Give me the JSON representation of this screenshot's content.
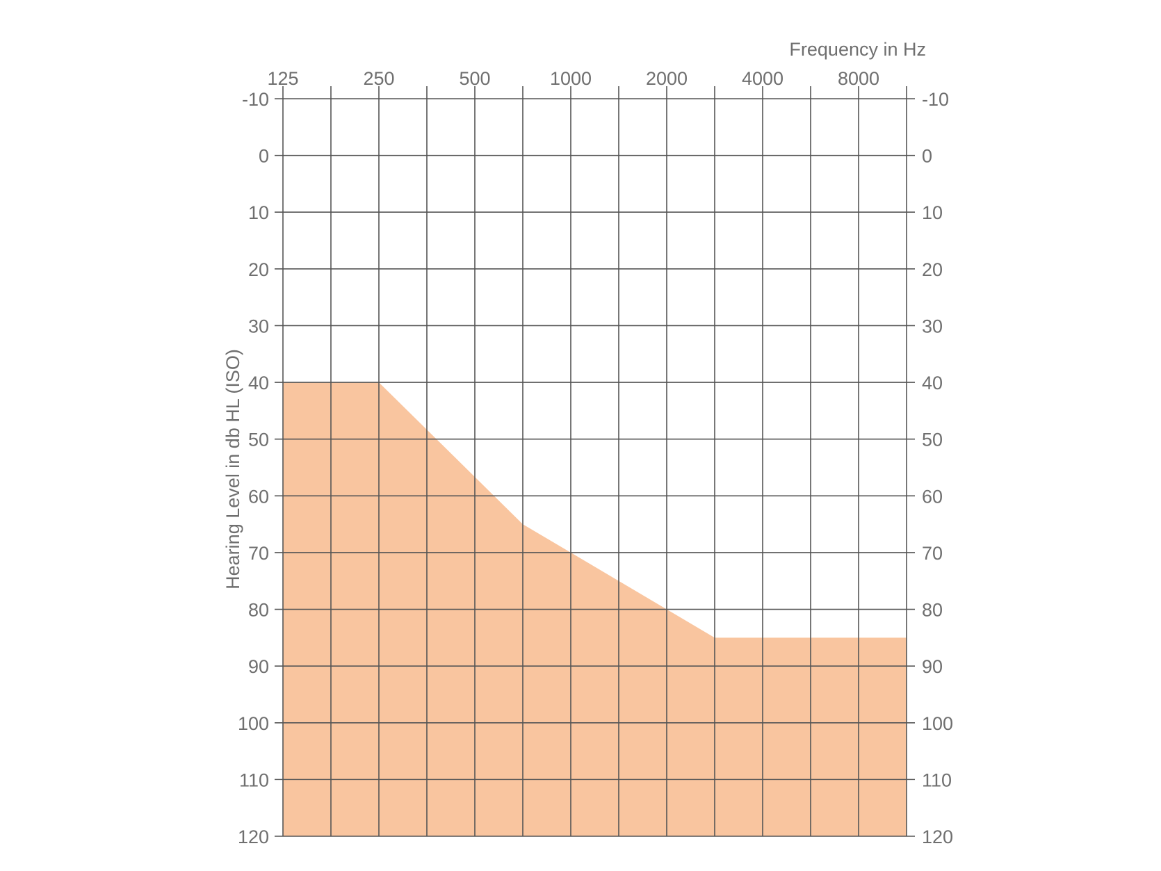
{
  "chart_data": {
    "type": "area",
    "xlabel": "Frequency in Hz",
    "ylabel": "Hearing Level in db HL (ISO)",
    "x_scale": "log2",
    "x_ticks": [
      125,
      250,
      500,
      1000,
      2000,
      4000,
      8000
    ],
    "x_tick_labels": [
      "125",
      "250",
      "500",
      "1000",
      "2000",
      "4000",
      "8000"
    ],
    "x_range": [
      125,
      11314
    ],
    "y_ticks": [
      -10,
      0,
      10,
      20,
      30,
      40,
      50,
      60,
      70,
      80,
      90,
      100,
      110,
      120
    ],
    "y_tick_labels": [
      "-10",
      "0",
      "10",
      "20",
      "30",
      "40",
      "50",
      "60",
      "70",
      "80",
      "90",
      "100",
      "110",
      "120"
    ],
    "y_range": [
      -10,
      120
    ],
    "y_inverted": true,
    "y_axis_both_sides": true,
    "grid": true,
    "series": [
      {
        "fill_color": "#f9c59f",
        "x": [
          125,
          250,
          707,
          1000,
          2828,
          11314
        ],
        "y": [
          40,
          40,
          65,
          70,
          85,
          85
        ]
      }
    ]
  }
}
